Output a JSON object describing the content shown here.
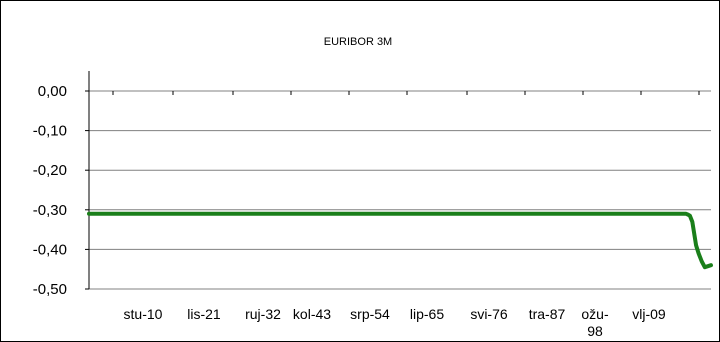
{
  "chart_data": {
    "type": "line",
    "title": "EURIBOR 3M",
    "xlabel": "",
    "ylabel": "",
    "ylim": [
      -0.5,
      0.0
    ],
    "yticks": [
      "0,00",
      "-0,10",
      "-0,20",
      "-0,30",
      "-0,40",
      "-0,50"
    ],
    "ytick_values": [
      0.0,
      -0.1,
      -0.2,
      -0.3,
      -0.4,
      -0.5
    ],
    "xticks": [
      "stu-10",
      "lis-21",
      "ruj-32",
      "kol-43",
      "srp-54",
      "lip-65",
      "svi-76",
      "tra-87",
      "ožu-\n98",
      "vlj-09"
    ],
    "grid": true,
    "legend": "none",
    "line_color": "#1a7f1a",
    "series": [
      {
        "x_fraction": [
          0.0,
          0.96,
          0.963,
          0.966,
          0.97,
          0.973,
          0.976,
          0.98,
          0.985,
          0.99,
          1.0
        ],
        "values": [
          -0.31,
          -0.31,
          -0.312,
          -0.315,
          -0.33,
          -0.36,
          -0.39,
          -0.41,
          -0.43,
          -0.445,
          -0.44
        ]
      }
    ]
  }
}
